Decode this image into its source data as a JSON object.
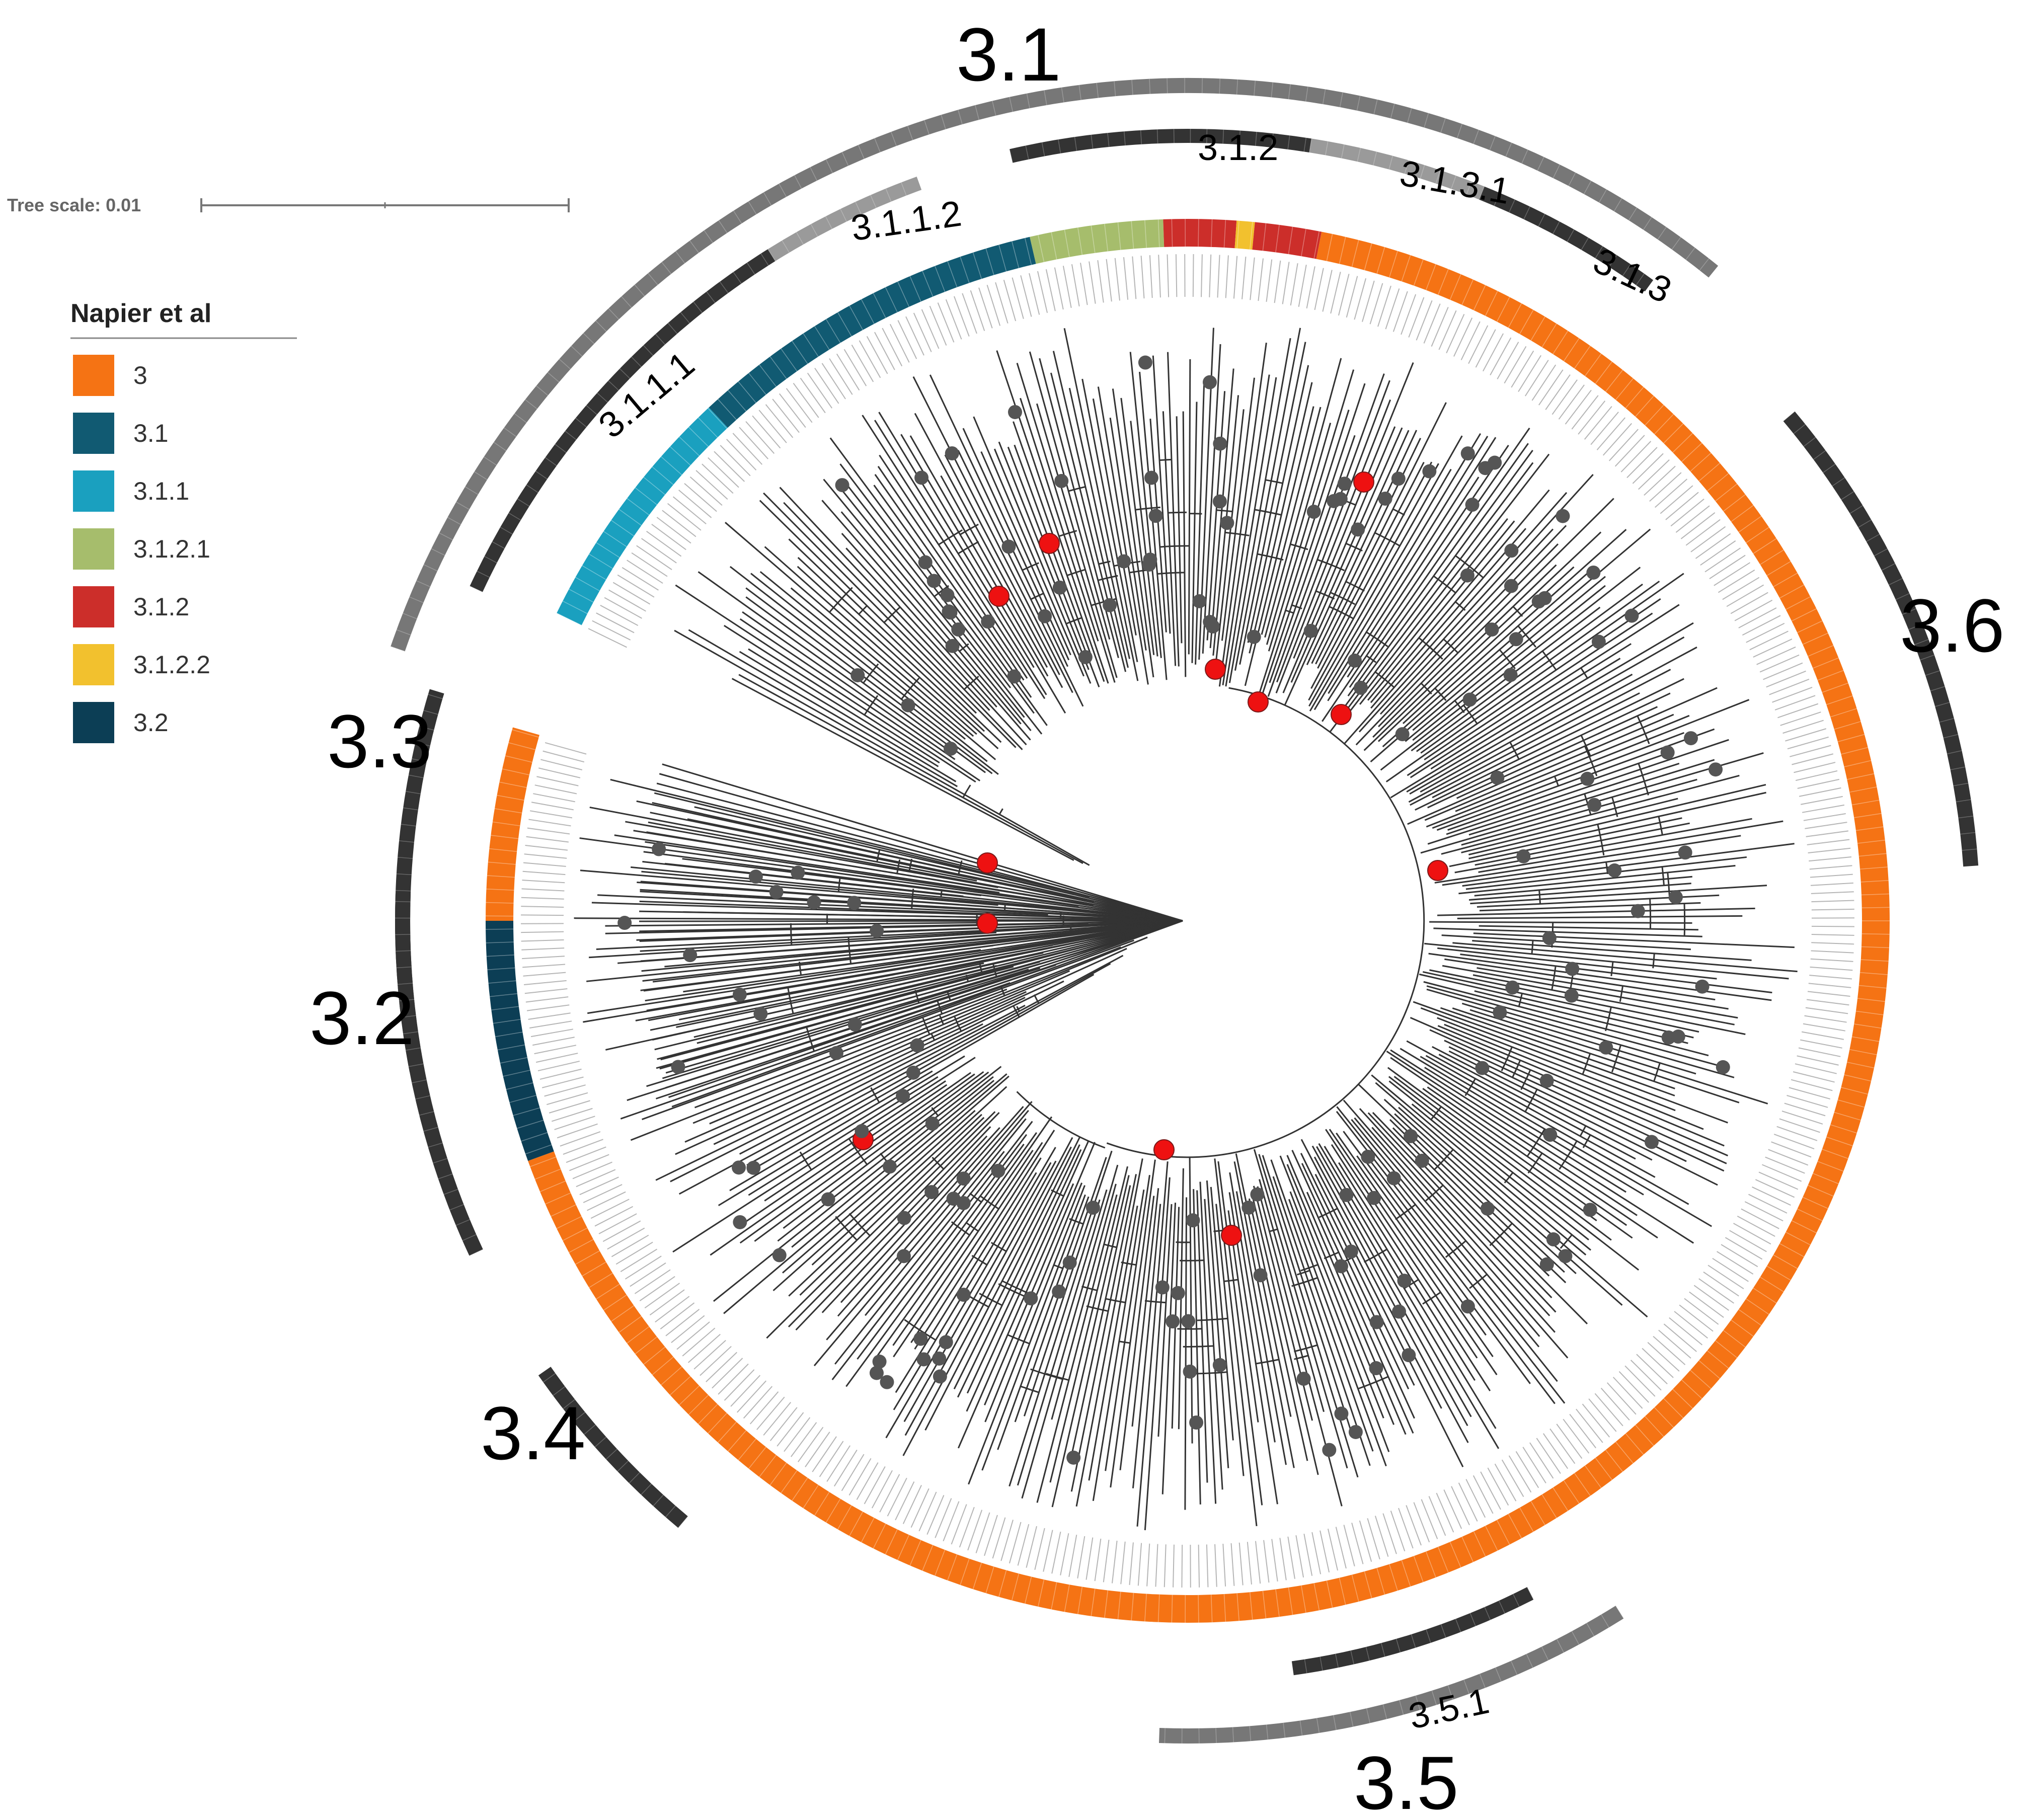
{
  "scale": {
    "label": "Tree scale: 0.01"
  },
  "legend": {
    "title": "Napier et al",
    "items": [
      {
        "label": "3",
        "color": "#f57314"
      },
      {
        "label": "3.1",
        "color": "#115a72"
      },
      {
        "label": "3.1.1",
        "color": "#1aa0bf"
      },
      {
        "label": "3.1.2.1",
        "color": "#a6bd6c"
      },
      {
        "label": "3.1.2",
        "color": "#cc2e2a"
      },
      {
        "label": "3.1.2.2",
        "color": "#f2c12e"
      },
      {
        "label": "3.2",
        "color": "#0c3e55"
      }
    ]
  },
  "clade_labels": {
    "c31": "3.1",
    "c3112": "3.1.1.2",
    "c312": "3.1.2",
    "c3131": "3.1.3.1",
    "c313": "3.1.3",
    "c3111": "3.1.1.1",
    "c36": "3.6",
    "c33": "3.3",
    "c32": "3.2",
    "c34": "3.4",
    "c351": "3.5.1",
    "c35": "3.5"
  },
  "colors": {
    "orange": "#f57314",
    "teal": "#115a72",
    "cyan": "#1aa0bf",
    "olive": "#a6bd6c",
    "red": "#cc2e2a",
    "yellow": "#f2c12e",
    "navy": "#0c3e55",
    "dark_bar": "#333333",
    "mid_bar": "#777777",
    "light_bar": "#9a9a9a",
    "node_gray": "#555555",
    "node_red": "#ee1111"
  }
}
